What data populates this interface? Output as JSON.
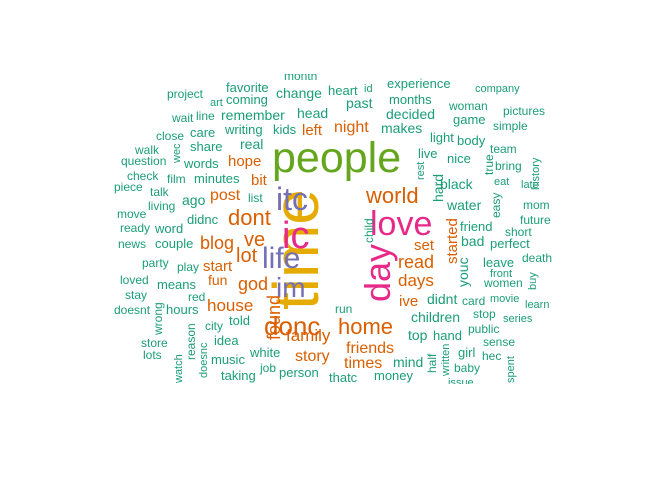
{
  "palette": {
    "teal": "#1b9e77",
    "orange": "#d95f02",
    "purple": "#7570b3",
    "pink": "#e7298a",
    "green": "#66a61e",
    "gold": "#e6ab02"
  },
  "words": [
    {
      "text": "time",
      "color": "#e6ab02"
    },
    {
      "text": "people",
      "color": "#66a61e"
    },
    {
      "text": "day",
      "color": "#e7298a"
    },
    {
      "text": "love",
      "color": "#e7298a"
    },
    {
      "text": "itc",
      "color": "#7570b3"
    },
    {
      "text": "ic",
      "color": "#e7298a"
    },
    {
      "text": "life",
      "color": "#7570b3"
    },
    {
      "text": "im",
      "color": "#7570b3"
    },
    {
      "text": "donc",
      "color": "#d95f02"
    },
    {
      "text": "world",
      "color": "#d95f02"
    },
    {
      "text": "dont",
      "color": "#d95f02"
    },
    {
      "text": "home",
      "color": "#d95f02"
    },
    {
      "text": "ve",
      "color": "#d95f02"
    },
    {
      "text": "lot",
      "color": "#d95f02"
    },
    {
      "text": "god",
      "color": "#d95f02"
    },
    {
      "text": "blog",
      "color": "#d95f02"
    },
    {
      "text": "read",
      "color": "#d95f02"
    },
    {
      "text": "days",
      "color": "#d95f02"
    },
    {
      "text": "found",
      "color": "#d95f02"
    },
    {
      "text": "house",
      "color": "#d95f02"
    },
    {
      "text": "family",
      "color": "#d95f02"
    },
    {
      "text": "friends",
      "color": "#d95f02"
    },
    {
      "text": "story",
      "color": "#d95f02"
    },
    {
      "text": "times",
      "color": "#d95f02"
    },
    {
      "text": "night",
      "color": "#d95f02"
    },
    {
      "text": "post",
      "color": "#d95f02"
    },
    {
      "text": "start",
      "color": "#d95f02"
    },
    {
      "text": "hope",
      "color": "#d95f02"
    },
    {
      "text": "bit",
      "color": "#d95f02"
    },
    {
      "text": "left",
      "color": "#d95f02"
    },
    {
      "text": "started",
      "color": "#d95f02"
    },
    {
      "text": "set",
      "color": "#d95f02"
    },
    {
      "text": "ive",
      "color": "#d95f02"
    },
    {
      "text": "fun",
      "color": "#d95f02"
    },
    {
      "text": "mind",
      "color": "#1b9e77"
    },
    {
      "text": "top",
      "color": "#1b9e77"
    },
    {
      "text": "children",
      "color": "#1b9e77"
    },
    {
      "text": "didnt",
      "color": "#1b9e77"
    },
    {
      "text": "hard",
      "color": "#1b9e77"
    },
    {
      "text": "black",
      "color": "#1b9e77"
    },
    {
      "text": "nice",
      "color": "#1b9e77"
    },
    {
      "text": "water",
      "color": "#1b9e77"
    },
    {
      "text": "friend",
      "color": "#1b9e77"
    },
    {
      "text": "bad",
      "color": "#1b9e77"
    },
    {
      "text": "perfect",
      "color": "#1b9e77"
    },
    {
      "text": "youc",
      "color": "#1b9e77"
    },
    {
      "text": "leave",
      "color": "#1b9e77"
    },
    {
      "text": "women",
      "color": "#1b9e77"
    },
    {
      "text": "live",
      "color": "#1b9e77"
    },
    {
      "text": "light",
      "color": "#1b9e77"
    },
    {
      "text": "makes",
      "color": "#1b9e77"
    },
    {
      "text": "decided",
      "color": "#1b9e77"
    },
    {
      "text": "months",
      "color": "#1b9e77"
    },
    {
      "text": "experience",
      "color": "#1b9e77"
    },
    {
      "text": "past",
      "color": "#1b9e77"
    },
    {
      "text": "heart",
      "color": "#1b9e77"
    },
    {
      "text": "change",
      "color": "#1b9e77"
    },
    {
      "text": "head",
      "color": "#1b9e77"
    },
    {
      "text": "kids",
      "color": "#1b9e77"
    },
    {
      "text": "writing",
      "color": "#1b9e77"
    },
    {
      "text": "remember",
      "color": "#1b9e77"
    },
    {
      "text": "coming",
      "color": "#1b9e77"
    },
    {
      "text": "favorite",
      "color": "#1b9e77"
    },
    {
      "text": "real",
      "color": "#1b9e77"
    },
    {
      "text": "care",
      "color": "#1b9e77"
    },
    {
      "text": "share",
      "color": "#1b9e77"
    },
    {
      "text": "words",
      "color": "#1b9e77"
    },
    {
      "text": "minutes",
      "color": "#1b9e77"
    },
    {
      "text": "ago",
      "color": "#1b9e77"
    },
    {
      "text": "didnc",
      "color": "#1b9e77"
    },
    {
      "text": "couple",
      "color": "#1b9e77"
    },
    {
      "text": "play",
      "color": "#1b9e77"
    },
    {
      "text": "means",
      "color": "#1b9e77"
    },
    {
      "text": "hours",
      "color": "#1b9e77"
    },
    {
      "text": "told",
      "color": "#1b9e77"
    },
    {
      "text": "city",
      "color": "#1b9e77"
    },
    {
      "text": "idea",
      "color": "#1b9e77"
    },
    {
      "text": "music",
      "color": "#1b9e77"
    },
    {
      "text": "white",
      "color": "#1b9e77"
    },
    {
      "text": "person",
      "color": "#1b9e77"
    },
    {
      "text": "taking",
      "color": "#1b9e77"
    },
    {
      "text": "job",
      "color": "#1b9e77"
    },
    {
      "text": "thatc",
      "color": "#1b9e77"
    },
    {
      "text": "money",
      "color": "#1b9e77"
    },
    {
      "text": "run",
      "color": "#1b9e77"
    },
    {
      "text": "living",
      "color": "#1b9e77"
    },
    {
      "text": "talk",
      "color": "#1b9e77"
    },
    {
      "text": "film",
      "color": "#1b9e77"
    },
    {
      "text": "list",
      "color": "#1b9e77"
    },
    {
      "text": "child",
      "color": "#1b9e77"
    },
    {
      "text": "rest",
      "color": "#1b9e77"
    },
    {
      "text": "card",
      "color": "#1b9e77"
    },
    {
      "text": "movie",
      "color": "#1b9e77"
    },
    {
      "text": "hand",
      "color": "#1b9e77"
    },
    {
      "text": "stop",
      "color": "#1b9e77"
    },
    {
      "text": "public",
      "color": "#1b9e77"
    },
    {
      "text": "girl",
      "color": "#1b9e77"
    },
    {
      "text": "half",
      "color": "#1b9e77"
    },
    {
      "text": "written",
      "color": "#1b9e77"
    },
    {
      "text": "baby",
      "color": "#1b9e77"
    },
    {
      "text": "hec",
      "color": "#1b9e77"
    },
    {
      "text": "sense",
      "color": "#1b9e77"
    },
    {
      "text": "series",
      "color": "#1b9e77"
    },
    {
      "text": "front",
      "color": "#1b9e77"
    },
    {
      "text": "learn",
      "color": "#1b9e77"
    },
    {
      "text": "buy",
      "color": "#1b9e77"
    },
    {
      "text": "death",
      "color": "#1b9e77"
    },
    {
      "text": "short",
      "color": "#1b9e77"
    },
    {
      "text": "future",
      "color": "#1b9e77"
    },
    {
      "text": "mom",
      "color": "#1b9e77"
    },
    {
      "text": "late",
      "color": "#1b9e77"
    },
    {
      "text": "eat",
      "color": "#1b9e77"
    },
    {
      "text": "easy",
      "color": "#1b9e77"
    },
    {
      "text": "true",
      "color": "#1b9e77"
    },
    {
      "text": "bring",
      "color": "#1b9e77"
    },
    {
      "text": "team",
      "color": "#1b9e77"
    },
    {
      "text": "history",
      "color": "#1b9e77"
    },
    {
      "text": "body",
      "color": "#1b9e77"
    },
    {
      "text": "simple",
      "color": "#1b9e77"
    },
    {
      "text": "game",
      "color": "#1b9e77"
    },
    {
      "text": "woman",
      "color": "#1b9e77"
    },
    {
      "text": "pictures",
      "color": "#1b9e77"
    },
    {
      "text": "company",
      "color": "#1b9e77"
    },
    {
      "text": "project",
      "color": "#1b9e77"
    },
    {
      "text": "art",
      "color": "#1b9e77"
    },
    {
      "text": "line",
      "color": "#1b9e77"
    },
    {
      "text": "wait",
      "color": "#1b9e77"
    },
    {
      "text": "close",
      "color": "#1b9e77"
    },
    {
      "text": "walk",
      "color": "#1b9e77"
    },
    {
      "text": "question",
      "color": "#1b9e77"
    },
    {
      "text": "check",
      "color": "#1b9e77"
    },
    {
      "text": "piece",
      "color": "#1b9e77"
    },
    {
      "text": "move",
      "color": "#1b9e77"
    },
    {
      "text": "ready",
      "color": "#1b9e77"
    },
    {
      "text": "word",
      "color": "#1b9e77"
    },
    {
      "text": "news",
      "color": "#1b9e77"
    },
    {
      "text": "party",
      "color": "#1b9e77"
    },
    {
      "text": "loved",
      "color": "#1b9e77"
    },
    {
      "text": "stay",
      "color": "#1b9e77"
    },
    {
      "text": "doesnt",
      "color": "#1b9e77"
    },
    {
      "text": "wrong",
      "color": "#1b9e77"
    },
    {
      "text": "red",
      "color": "#1b9e77"
    },
    {
      "text": "store",
      "color": "#1b9e77"
    },
    {
      "text": "lots",
      "color": "#1b9e77"
    },
    {
      "text": "watch",
      "color": "#1b9e77"
    },
    {
      "text": "reason",
      "color": "#1b9e77"
    },
    {
      "text": "doesnc",
      "color": "#1b9e77"
    },
    {
      "text": "wec",
      "color": "#1b9e77"
    },
    {
      "text": "id",
      "color": "#1b9e77"
    },
    {
      "text": "month",
      "color": "#1b9e77"
    },
    {
      "text": "issue",
      "color": "#1b9e77"
    },
    {
      "text": "spent",
      "color": "#1b9e77"
    }
  ]
}
